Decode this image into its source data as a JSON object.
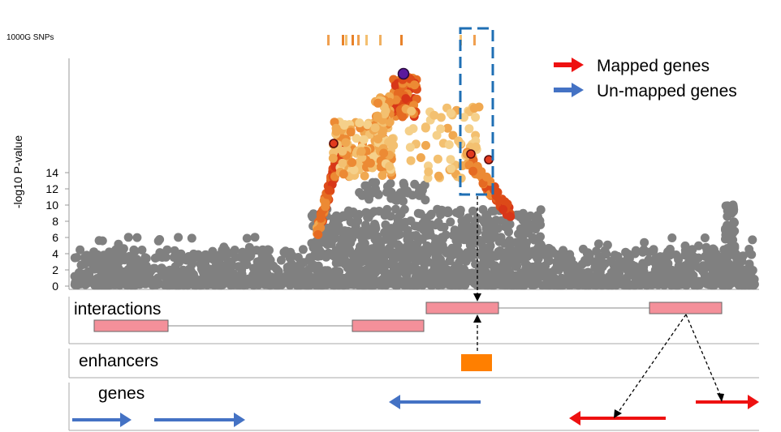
{
  "track_label": "1000G SNPs",
  "ylabel": "-log10 P-value",
  "yticks": [
    "0",
    "2",
    "4",
    "6",
    "8",
    "10",
    "12",
    "14"
  ],
  "legend": {
    "mapped": {
      "label": "Mapped genes",
      "color": "#ee1111"
    },
    "unmapped": {
      "label": "Un-mapped genes",
      "color": "#4472c4"
    }
  },
  "panels": {
    "interactions": "interactions",
    "enhancers": "enhancers",
    "genes": "genes"
  },
  "colors": {
    "background_snp": "#808080",
    "lead_snp": "#5b1a9e",
    "interaction_box": "#f4909a",
    "enhancer": "#ff7f00",
    "highlight_box": "#1f6fb4"
  }
}
